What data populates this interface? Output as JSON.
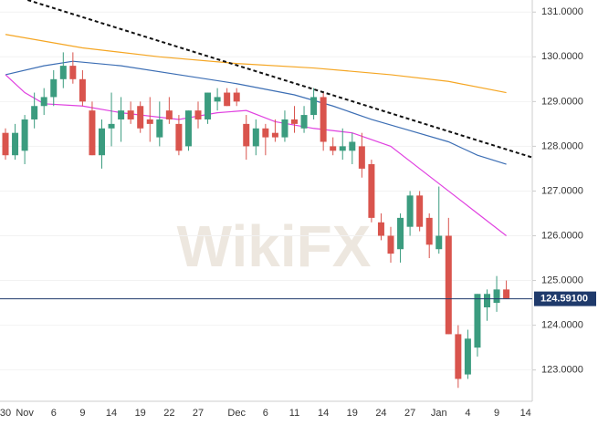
{
  "chart_data": {
    "type": "candlestick",
    "watermark": "WikiFX",
    "categories": [
      "30",
      null,
      "Nov",
      null,
      null,
      "6",
      null,
      null,
      "9",
      null,
      null,
      "14",
      null,
      null,
      "19",
      null,
      null,
      "22",
      null,
      null,
      "27",
      null,
      null,
      null,
      "Dec",
      null,
      null,
      "6",
      null,
      null,
      "11",
      null,
      null,
      "14",
      null,
      null,
      "19",
      null,
      null,
      "24",
      null,
      null,
      "27",
      null,
      null,
      "Jan",
      null,
      null,
      "4",
      null,
      null,
      "9",
      null,
      null,
      "14"
    ],
    "open": [
      128.3,
      127.8,
      127.9,
      128.6,
      128.9,
      129.1,
      129.5,
      129.8,
      129.5,
      128.8,
      127.8,
      128.4,
      128.6,
      128.8,
      128.9,
      128.6,
      128.2,
      128.8,
      128.5,
      128.0,
      128.8,
      128.6,
      129.0,
      129.2,
      129.2,
      128.5,
      128.0,
      128.4,
      128.3,
      128.2,
      128.6,
      128.4,
      128.7,
      129.1,
      128.0,
      127.9,
      127.9,
      128.0,
      127.6,
      126.3,
      126.0,
      125.7,
      126.2,
      126.9,
      126.4,
      125.7,
      126.0,
      123.8,
      122.9,
      123.5,
      124.4,
      124.5,
      124.8,
      null,
      null
    ],
    "high": [
      128.4,
      128.5,
      128.7,
      129.2,
      129.3,
      129.7,
      130.1,
      130.1,
      129.7,
      129.0,
      128.6,
      129.2,
      129.1,
      129.0,
      129.0,
      129.1,
      129.0,
      129.1,
      128.7,
      128.8,
      129.0,
      129.2,
      129.3,
      129.3,
      129.3,
      128.7,
      128.6,
      128.5,
      128.6,
      128.8,
      128.9,
      128.9,
      129.3,
      129.2,
      128.2,
      128.4,
      128.3,
      128.3,
      127.7,
      126.5,
      126.2,
      126.5,
      127.0,
      127.0,
      126.5,
      127.1,
      126.4,
      124.0,
      123.9,
      124.7,
      124.8,
      125.1,
      125.0,
      null,
      null
    ],
    "low": [
      127.7,
      127.7,
      127.6,
      128.4,
      128.7,
      128.9,
      129.3,
      129.4,
      128.9,
      127.8,
      127.5,
      128.0,
      128.1,
      128.5,
      128.3,
      128.1,
      128.0,
      128.5,
      127.8,
      127.9,
      128.4,
      128.5,
      128.8,
      128.9,
      128.9,
      127.7,
      127.8,
      127.8,
      128.1,
      128.1,
      128.3,
      128.3,
      128.6,
      127.9,
      127.8,
      127.7,
      127.6,
      127.3,
      126.3,
      125.9,
      125.4,
      125.4,
      126.0,
      126.1,
      125.5,
      125.6,
      123.8,
      122.6,
      122.8,
      123.3,
      124.1,
      124.3,
      124.6,
      null,
      null
    ],
    "close": [
      127.8,
      128.3,
      128.6,
      128.9,
      129.1,
      129.5,
      129.8,
      129.5,
      129.0,
      127.8,
      128.4,
      128.5,
      128.8,
      128.6,
      128.4,
      128.5,
      128.6,
      128.6,
      127.9,
      128.8,
      128.6,
      129.2,
      129.1,
      128.9,
      129.0,
      128.0,
      128.4,
      128.2,
      128.2,
      128.6,
      128.5,
      128.7,
      129.1,
      128.1,
      127.9,
      128.0,
      128.1,
      127.5,
      126.4,
      126.0,
      125.6,
      126.4,
      126.9,
      126.2,
      125.8,
      126.0,
      123.8,
      122.8,
      123.7,
      124.7,
      124.7,
      124.8,
      124.6,
      null,
      null
    ],
    "up_color": "#3b9c7f",
    "down_color": "#d9544d",
    "lines": [
      {
        "color": "#f5a623",
        "x": [
          0,
          8,
          16,
          24,
          32,
          40,
          46,
          52
        ],
        "values": [
          130.5,
          130.2,
          130.0,
          129.85,
          129.75,
          129.6,
          129.45,
          129.2
        ]
      },
      {
        "color": "#3c6eb4",
        "x": [
          0,
          4,
          7,
          12,
          18,
          24,
          30,
          34,
          38,
          42,
          46,
          49,
          52
        ],
        "values": [
          129.6,
          129.8,
          129.9,
          129.8,
          129.6,
          129.4,
          129.15,
          128.9,
          128.6,
          128.35,
          128.1,
          127.8,
          127.6
        ]
      },
      {
        "color": "#e040e0",
        "x": [
          0,
          2,
          4,
          8,
          12,
          18,
          22,
          25,
          28,
          32,
          36,
          40,
          43,
          46,
          49,
          52
        ],
        "values": [
          129.6,
          129.2,
          128.95,
          128.9,
          128.75,
          128.6,
          128.75,
          128.8,
          128.55,
          128.4,
          128.3,
          128.0,
          127.5,
          127.0,
          126.5,
          126.0
        ]
      }
    ],
    "trendline": {
      "color": "#111111",
      "x": [
        2.3,
        54.7
      ],
      "values": [
        131.27,
        127.75
      ]
    },
    "last_price": {
      "value": 124.591,
      "label": "124.59100",
      "color": "#1f3a6b"
    },
    "ylim": [
      122.3,
      131.27
    ],
    "yticks": [
      {
        "value": 123,
        "label": "123.0000"
      },
      {
        "value": 124,
        "label": "124.0000"
      },
      {
        "value": 125,
        "label": "125.0000"
      },
      {
        "value": 126,
        "label": "126.0000"
      },
      {
        "value": 127,
        "label": "127.0000"
      },
      {
        "value": 128,
        "label": "128.0000"
      },
      {
        "value": 129,
        "label": "129.0000"
      },
      {
        "value": 130,
        "label": "130.0000"
      },
      {
        "value": 131,
        "label": "131.0000"
      }
    ],
    "grid": true
  }
}
